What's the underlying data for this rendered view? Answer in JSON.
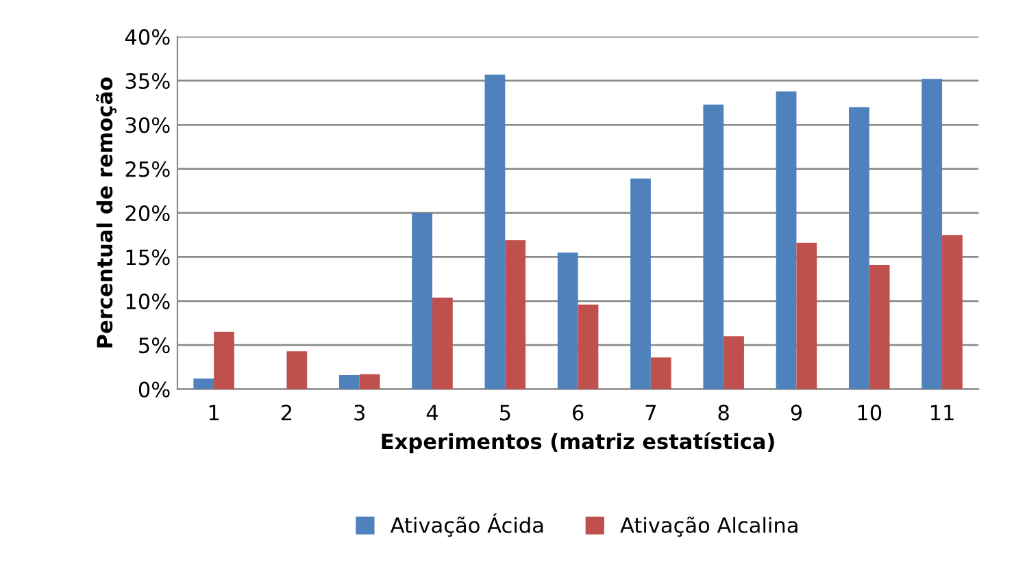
{
  "chart_data": {
    "type": "bar",
    "xlabel": "Experimentos (matriz estatística)",
    "ylabel": "Percentual de remoção",
    "categories": [
      "1",
      "2",
      "3",
      "4",
      "5",
      "6",
      "7",
      "8",
      "9",
      "10",
      "11"
    ],
    "series": [
      {
        "name": "Ativação Ácida",
        "color": "#4f81bd",
        "values": [
          1.2,
          0,
          1.6,
          20.0,
          35.7,
          15.5,
          23.9,
          32.3,
          33.8,
          32.0,
          35.2
        ]
      },
      {
        "name": "Ativação Alcalina",
        "color": "#c0504d",
        "values": [
          6.5,
          4.3,
          1.7,
          10.4,
          16.9,
          9.6,
          3.6,
          6.0,
          16.6,
          14.1,
          17.5
        ]
      }
    ],
    "ylim": [
      0,
      40
    ],
    "yticks": [
      {
        "value": 0,
        "label": "0%"
      },
      {
        "value": 5,
        "label": "5%"
      },
      {
        "value": 10,
        "label": "10%"
      },
      {
        "value": 15,
        "label": "15%"
      },
      {
        "value": 20,
        "label": "20%"
      },
      {
        "value": 25,
        "label": "25%"
      },
      {
        "value": 30,
        "label": "30%"
      },
      {
        "value": 35,
        "label": "35%"
      },
      {
        "value": 40,
        "label": "40%"
      }
    ],
    "grid": "y",
    "legend": "bottom"
  }
}
